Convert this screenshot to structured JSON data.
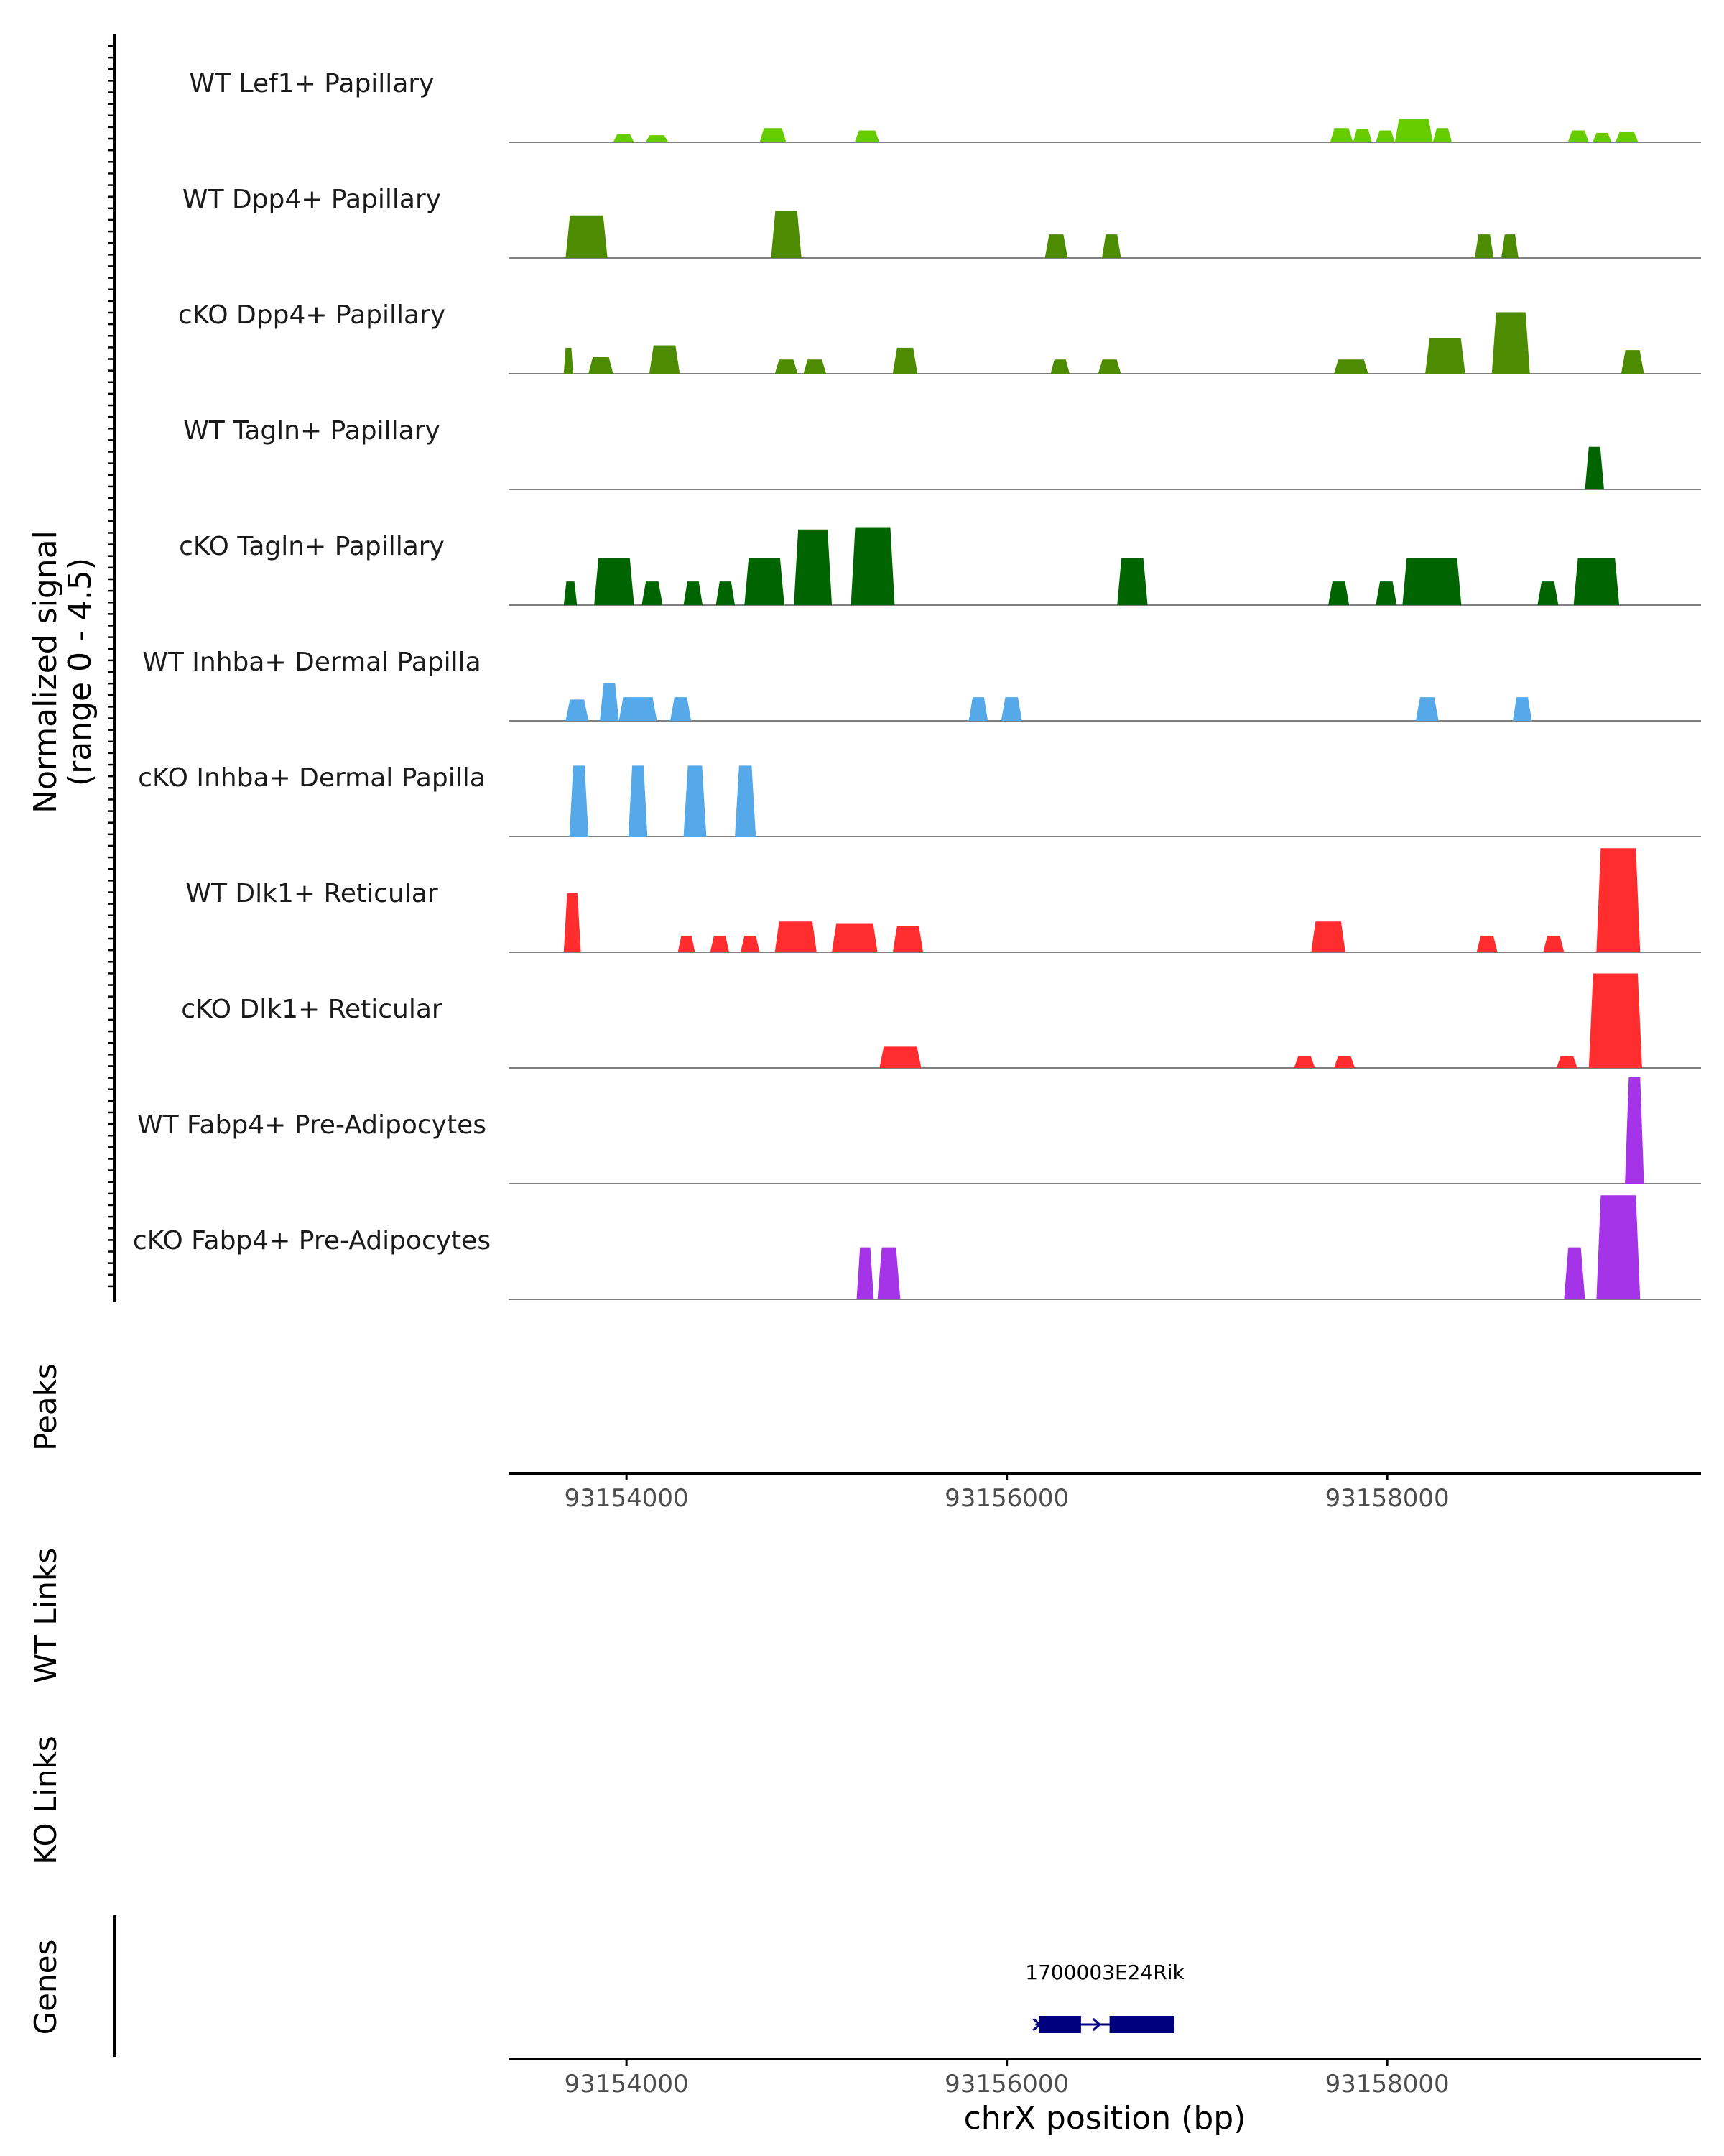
{
  "chart_data": {
    "type": "area",
    "title": "",
    "chromosome": "chrX",
    "xlim": [
      93153380,
      93159650
    ],
    "xlabel": "chrX position (bp)",
    "ylabel_line1": "Normalized signal",
    "ylabel_line2": "(range 0 - 4.5)",
    "ylim": [
      0,
      4.5
    ],
    "x_ticks": [
      93154000,
      93156000,
      93158000
    ],
    "x_tick_labels": [
      "93154000",
      "93156000",
      "93158000"
    ],
    "panels": {
      "peaks": "Peaks",
      "wt_links": "WT Links",
      "ko_links": "KO Links",
      "genes": "Genes"
    },
    "tracks": [
      {
        "name": "WT Lef1+ Papillary",
        "color": "#66cc00",
        "blocks": [
          [
            93153930,
            93154040,
            0.35
          ],
          [
            93154100,
            93154220,
            0.3
          ],
          [
            93154700,
            93154840,
            0.6
          ],
          [
            93155200,
            93155330,
            0.5
          ],
          [
            93157700,
            93157820,
            0.6
          ],
          [
            93157820,
            93157920,
            0.55
          ],
          [
            93157940,
            93158040,
            0.5
          ],
          [
            93158040,
            93158240,
            1.0
          ],
          [
            93158240,
            93158340,
            0.6
          ],
          [
            93158950,
            93159060,
            0.5
          ],
          [
            93159080,
            93159180,
            0.4
          ],
          [
            93159200,
            93159320,
            0.45
          ]
        ]
      },
      {
        "name": "WT Dpp4+ Papillary",
        "color": "#4d8c00",
        "blocks": [
          [
            93153680,
            93153900,
            1.8
          ],
          [
            93153900,
            93153890,
            0
          ],
          [
            93154760,
            93154920,
            2.0
          ],
          [
            93156200,
            93156320,
            1.0
          ],
          [
            93156500,
            93156600,
            1.0
          ],
          [
            93158460,
            93158560,
            1.0
          ],
          [
            93158600,
            93158690,
            1.0
          ]
        ]
      },
      {
        "name": "cKO Dpp4+ Papillary",
        "color": "#4d8c00",
        "blocks": [
          [
            93153670,
            93153720,
            1.1
          ],
          [
            93153800,
            93153930,
            0.7
          ],
          [
            93154120,
            93154280,
            1.2
          ],
          [
            93154780,
            93154900,
            0.6
          ],
          [
            93154930,
            93155050,
            0.6
          ],
          [
            93155400,
            93155530,
            1.1
          ],
          [
            93156230,
            93156330,
            0.6
          ],
          [
            93156480,
            93156600,
            0.6
          ],
          [
            93157720,
            93157900,
            0.6
          ],
          [
            93158200,
            93158410,
            1.5
          ],
          [
            93158550,
            93158750,
            2.6
          ],
          [
            93159230,
            93159350,
            1.0
          ],
          [
            93159350,
            93159330,
            0
          ]
        ]
      },
      {
        "name": "WT Tagln+ Papillary",
        "color": "#006400",
        "blocks": [
          [
            93159040,
            93159140,
            1.8
          ]
        ]
      },
      {
        "name": "cKO Tagln+ Papillary",
        "color": "#006400",
        "blocks": [
          [
            93153670,
            93153740,
            1.0
          ],
          [
            93153830,
            93154040,
            2.0
          ],
          [
            93154080,
            93154190,
            1.0
          ],
          [
            93154300,
            93154400,
            1.0
          ],
          [
            93154470,
            93154570,
            1.0
          ],
          [
            93154620,
            93154830,
            2.0
          ],
          [
            93154880,
            93155080,
            3.2
          ],
          [
            93155180,
            93155410,
            3.3
          ],
          [
            93156580,
            93156740,
            2.0
          ],
          [
            93157690,
            93157800,
            1.0
          ],
          [
            93157940,
            93158050,
            1.0
          ],
          [
            93158080,
            93158390,
            2.0
          ],
          [
            93158790,
            93158900,
            1.0
          ],
          [
            93158980,
            93159220,
            2.0
          ]
        ]
      },
      {
        "name": "WT Inhba+ Dermal Papilla",
        "color": "#56a9e9",
        "blocks": [
          [
            93153680,
            93153800,
            0.9
          ],
          [
            93153860,
            93153960,
            1.6
          ],
          [
            93153960,
            93154160,
            1.0
          ],
          [
            93154230,
            93154340,
            1.0
          ],
          [
            93155800,
            93155900,
            1.0
          ],
          [
            93155970,
            93156080,
            1.0
          ],
          [
            93158150,
            93158270,
            1.0
          ],
          [
            93158660,
            93158760,
            1.0
          ]
        ]
      },
      {
        "name": "cKO Inhba+ Dermal Papilla",
        "color": "#56a9e9",
        "blocks": [
          [
            93153700,
            93153800,
            3.0
          ],
          [
            93154010,
            93154110,
            3.0
          ],
          [
            93154300,
            93154420,
            3.0
          ],
          [
            93154570,
            93154680,
            3.0
          ]
        ]
      },
      {
        "name": "WT Dlk1+ Reticular",
        "color": "#ff2d2d",
        "blocks": [
          [
            93153670,
            93153760,
            2.5
          ],
          [
            93154270,
            93154360,
            0.7
          ],
          [
            93154440,
            93154540,
            0.7
          ],
          [
            93154600,
            93154700,
            0.7
          ],
          [
            93154780,
            93155000,
            1.3
          ],
          [
            93155080,
            93155320,
            1.2
          ],
          [
            93155400,
            93155560,
            1.1
          ],
          [
            93157600,
            93157780,
            1.3
          ],
          [
            93158470,
            93158580,
            0.7
          ],
          [
            93158820,
            93158930,
            0.7
          ],
          [
            93159100,
            93159330,
            4.4
          ]
        ]
      },
      {
        "name": "cKO Dlk1+ Reticular",
        "color": "#ff2d2d",
        "blocks": [
          [
            93155330,
            93155550,
            0.9
          ],
          [
            93157510,
            93157620,
            0.5
          ],
          [
            93157720,
            93157830,
            0.5
          ],
          [
            93158890,
            93159000,
            0.5
          ],
          [
            93159060,
            93159340,
            4.0
          ]
        ]
      },
      {
        "name": "WT Fabp4+ Pre-Adipocytes",
        "color": "#a534e8",
        "blocks": [
          [
            93159250,
            93159350,
            4.5
          ]
        ]
      },
      {
        "name": "cKO Fabp4+ Pre-Adipocytes",
        "color": "#a534e8",
        "blocks": [
          [
            93155210,
            93155300,
            2.2
          ],
          [
            93155320,
            93155440,
            2.2
          ],
          [
            93158930,
            93159040,
            2.2
          ],
          [
            93159100,
            93159330,
            4.4
          ]
        ]
      }
    ],
    "genes": [
      {
        "name": "1700003E24Rik",
        "start": 93156150,
        "end": 93156880,
        "strand": "+",
        "exons": [
          [
            93156170,
            93156390
          ],
          [
            93156540,
            93156880
          ]
        ]
      }
    ]
  }
}
